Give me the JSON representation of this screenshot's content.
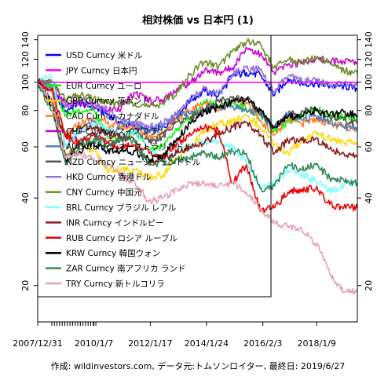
{
  "chart_data": {
    "type": "line",
    "title": "相対株価 vs 日本円 (1)",
    "footer": "作成: wildinvestors.com, データ元:トムソンロイター, 最終日: 2019/6/27",
    "x_tick_labels": [
      "2007/12/31",
      "2010/1/7",
      "2012/1/17",
      "2014/1/24",
      "2016/2/3",
      "2018/1/9"
    ],
    "x_tick_dates": [
      "2007-12-31",
      "2010-01-07",
      "2012-01-17",
      "2014-01-24",
      "2016-02-03",
      "2018-01-09"
    ],
    "x_range": [
      "2007-12-31",
      "2019-06-27"
    ],
    "y_scale": "log",
    "ylim": [
      15,
      145
    ],
    "y_ticks": [
      20,
      40,
      60,
      80,
      100,
      120,
      140
    ],
    "reference_line": 100,
    "legend_position": "top-left",
    "series": [
      {
        "name": "USD Curncy 米ドル",
        "color": "#0000ff",
        "x": [
          "2007-12-31",
          "2008-06-30",
          "2008-12-31",
          "2009-06-30",
          "2010-01-04",
          "2010-06-30",
          "2011-01-03",
          "2011-06-30",
          "2012-01-02",
          "2012-06-29",
          "2012-12-31",
          "2013-06-28",
          "2013-12-31",
          "2014-06-30",
          "2014-12-31",
          "2015-06-30",
          "2015-12-31",
          "2016-06-30",
          "2016-12-30",
          "2017-06-30",
          "2017-12-29",
          "2018-06-29",
          "2018-12-31",
          "2019-06-27"
        ],
        "values": [
          100,
          95,
          80,
          85,
          82,
          78,
          72,
          70,
          68,
          70,
          76,
          87,
          93,
          90,
          105,
          108,
          106,
          90,
          103,
          99,
          99,
          97,
          97,
          95
        ]
      },
      {
        "name": "JPY Curncy 日本円",
        "color": "#ff00ff",
        "x": [
          "2007-12-31",
          "2019-06-27"
        ],
        "values": [
          100,
          100
        ]
      },
      {
        "name": "EUR Curncy ユーロ",
        "color": "#00ff00",
        "x": [
          "2007-12-31",
          "2008-07-15",
          "2008-12-31",
          "2009-06-30",
          "2010-01-04",
          "2010-06-30",
          "2011-01-03",
          "2011-06-30",
          "2012-01-02",
          "2012-06-29",
          "2012-12-31",
          "2013-06-28",
          "2013-12-31",
          "2014-06-30",
          "2014-12-31",
          "2015-06-30",
          "2015-12-31",
          "2016-06-30",
          "2016-12-30",
          "2017-06-30",
          "2017-12-29",
          "2018-06-29",
          "2018-12-31",
          "2019-06-27"
        ],
        "values": [
          100,
          98,
          77,
          80,
          80,
          65,
          64,
          68,
          59,
          60,
          68,
          75,
          86,
          83,
          85,
          81,
          78,
          68,
          73,
          77,
          81,
          77,
          76,
          73
        ]
      },
      {
        "name": "GBP Curncy 英ポンド",
        "color": "#ffd700",
        "x": [
          "2007-12-31",
          "2008-06-30",
          "2008-12-31",
          "2009-06-30",
          "2010-01-04",
          "2010-06-30",
          "2011-01-03",
          "2011-06-30",
          "2012-01-02",
          "2012-06-29",
          "2012-12-31",
          "2013-06-28",
          "2013-12-31",
          "2014-06-30",
          "2014-12-31",
          "2015-06-30",
          "2015-12-31",
          "2016-06-30",
          "2016-12-30",
          "2017-06-30",
          "2017-12-29",
          "2018-06-29",
          "2018-12-31",
          "2019-06-27"
        ],
        "values": [
          100,
          84,
          55,
          62,
          58,
          50,
          50,
          50,
          47,
          48,
          55,
          60,
          68,
          72,
          73,
          77,
          70,
          61,
          57,
          63,
          67,
          64,
          62,
          62
        ]
      },
      {
        "name": "CAD Curncy カナダドル",
        "color": "#ff7f27",
        "x": [
          "2007-12-31",
          "2008-06-30",
          "2008-12-31",
          "2009-06-30",
          "2010-01-04",
          "2010-06-30",
          "2011-01-03",
          "2011-06-30",
          "2012-01-02",
          "2012-06-29",
          "2012-12-31",
          "2013-06-28",
          "2013-12-31",
          "2014-06-30",
          "2014-12-31",
          "2015-06-30",
          "2015-12-31",
          "2016-06-30",
          "2016-12-30",
          "2017-06-30",
          "2017-12-29",
          "2018-06-29",
          "2018-12-31",
          "2019-06-27"
        ],
        "values": [
          100,
          93,
          65,
          72,
          75,
          72,
          70,
          70,
          65,
          67,
          75,
          80,
          85,
          80,
          87,
          85,
          74,
          66,
          74,
          72,
          75,
          72,
          70,
          70
        ]
      },
      {
        "name": "CHF Curncy スイスフラン",
        "color": "#cc00cc",
        "x": [
          "2007-12-31",
          "2008-06-30",
          "2008-12-31",
          "2009-06-30",
          "2010-01-04",
          "2010-06-30",
          "2011-01-03",
          "2011-06-30",
          "2012-01-02",
          "2012-06-29",
          "2012-12-31",
          "2013-06-28",
          "2013-12-31",
          "2014-06-30",
          "2014-12-31",
          "2015-06-30",
          "2015-12-31",
          "2016-06-30",
          "2016-12-30",
          "2017-06-30",
          "2017-12-29",
          "2018-06-29",
          "2018-12-31",
          "2019-06-27"
        ],
        "values": [
          100,
          100,
          84,
          85,
          83,
          80,
          82,
          92,
          87,
          87,
          95,
          100,
          110,
          108,
          112,
          132,
          125,
          108,
          115,
          117,
          120,
          118,
          118,
          117
        ]
      },
      {
        "name": "AUD Curncy オーストラリアドル",
        "color": "#4f81bd",
        "x": [
          "2007-12-31",
          "2008-06-30",
          "2008-12-31",
          "2009-06-30",
          "2010-01-04",
          "2010-06-30",
          "2011-01-03",
          "2011-06-30",
          "2012-01-02",
          "2012-06-29",
          "2012-12-31",
          "2013-06-28",
          "2013-12-31",
          "2014-06-30",
          "2014-12-31",
          "2015-06-30",
          "2015-12-31",
          "2016-06-30",
          "2016-12-30",
          "2017-06-30",
          "2017-12-29",
          "2018-06-29",
          "2018-12-31",
          "2019-06-27"
        ],
        "values": [
          100,
          98,
          60,
          68,
          73,
          66,
          72,
          73,
          67,
          70,
          78,
          78,
          80,
          82,
          83,
          80,
          78,
          70,
          78,
          74,
          77,
          73,
          70,
          70
        ]
      },
      {
        "name": "NZD Curncy ニュージーランドドル",
        "color": "#555555",
        "x": [
          "2007-12-31",
          "2008-06-30",
          "2008-12-31",
          "2009-06-30",
          "2010-01-04",
          "2010-06-30",
          "2011-01-03",
          "2011-06-30",
          "2012-01-02",
          "2012-06-29",
          "2012-12-31",
          "2013-06-28",
          "2013-12-31",
          "2014-06-30",
          "2014-12-31",
          "2015-06-30",
          "2015-12-31",
          "2016-06-30",
          "2016-12-30",
          "2017-06-30",
          "2017-12-29",
          "2018-06-29",
          "2018-12-31",
          "2019-06-27"
        ],
        "values": [
          100,
          88,
          55,
          62,
          66,
          62,
          64,
          68,
          62,
          65,
          73,
          76,
          80,
          87,
          88,
          88,
          79,
          70,
          77,
          80,
          80,
          76,
          74,
          72
        ]
      },
      {
        "name": "HKD Curncy 香港ドル",
        "color": "#9370db",
        "x": [
          "2007-12-31",
          "2008-06-30",
          "2008-12-31",
          "2009-06-30",
          "2010-01-04",
          "2010-06-30",
          "2011-01-03",
          "2011-06-30",
          "2012-01-02",
          "2012-06-29",
          "2012-12-31",
          "2013-06-28",
          "2013-12-31",
          "2014-06-30",
          "2014-12-31",
          "2015-06-30",
          "2015-12-31",
          "2016-06-30",
          "2016-12-30",
          "2017-06-30",
          "2017-12-29",
          "2018-06-29",
          "2018-12-31",
          "2019-06-27"
        ],
        "values": [
          100,
          95,
          82,
          86,
          84,
          80,
          74,
          72,
          70,
          72,
          78,
          88,
          95,
          92,
          107,
          112,
          110,
          93,
          105,
          101,
          101,
          98,
          99,
          97
        ]
      },
      {
        "name": "CNY Curncy 中国元",
        "color": "#6b8e23",
        "x": [
          "2007-12-31",
          "2008-06-30",
          "2008-12-31",
          "2009-06-30",
          "2010-01-04",
          "2010-06-30",
          "2011-01-03",
          "2011-06-30",
          "2012-01-02",
          "2012-06-29",
          "2012-12-31",
          "2013-06-28",
          "2013-12-31",
          "2014-06-30",
          "2014-12-31",
          "2015-06-30",
          "2015-12-31",
          "2016-06-30",
          "2016-12-30",
          "2017-06-30",
          "2017-12-29",
          "2018-06-29",
          "2018-12-31",
          "2019-06-27"
        ],
        "values": [
          100,
          100,
          87,
          90,
          88,
          85,
          85,
          85,
          82,
          85,
          92,
          107,
          118,
          113,
          128,
          138,
          135,
          112,
          120,
          117,
          122,
          117,
          110,
          107
        ]
      },
      {
        "name": "BRL Curncy ブラジル レアル",
        "color": "#7fffff",
        "x": [
          "2007-12-31",
          "2008-06-30",
          "2008-12-31",
          "2009-06-30",
          "2010-01-04",
          "2010-06-30",
          "2011-01-03",
          "2011-06-30",
          "2012-01-02",
          "2012-06-29",
          "2012-12-31",
          "2013-06-28",
          "2013-12-31",
          "2014-06-30",
          "2014-12-31",
          "2015-06-30",
          "2015-12-31",
          "2016-06-30",
          "2016-12-30",
          "2017-06-30",
          "2017-12-29",
          "2018-06-29",
          "2018-12-31",
          "2019-06-27"
        ],
        "values": [
          100,
          105,
          60,
          68,
          72,
          70,
          65,
          68,
          58,
          55,
          58,
          60,
          62,
          63,
          60,
          53,
          43,
          45,
          50,
          48,
          46,
          42,
          44,
          45
        ]
      },
      {
        "name": "INR Curncy インドルピー",
        "color": "#8b1a1a",
        "x": [
          "2007-12-31",
          "2008-06-30",
          "2008-12-31",
          "2009-06-30",
          "2010-01-04",
          "2010-06-30",
          "2011-01-03",
          "2011-06-30",
          "2012-01-02",
          "2012-06-29",
          "2012-12-31",
          "2013-06-28",
          "2013-12-31",
          "2014-06-30",
          "2014-12-31",
          "2015-06-30",
          "2015-12-31",
          "2016-06-30",
          "2016-12-30",
          "2017-06-30",
          "2017-12-29",
          "2018-06-29",
          "2018-12-31",
          "2019-06-27"
        ],
        "values": [
          100,
          85,
          65,
          70,
          70,
          66,
          65,
          63,
          52,
          55,
          57,
          60,
          62,
          67,
          70,
          73,
          66,
          57,
          63,
          63,
          64,
          59,
          57,
          55
        ]
      },
      {
        "name": "RUB Curncy ロシア ルーブル",
        "color": "#ee0000",
        "x": [
          "2007-12-31",
          "2008-06-30",
          "2008-12-31",
          "2009-06-30",
          "2010-01-04",
          "2010-06-30",
          "2011-01-03",
          "2011-06-30",
          "2012-01-02",
          "2012-06-29",
          "2012-12-31",
          "2013-06-28",
          "2013-12-31",
          "2014-06-30",
          "2014-12-31",
          "2015-06-30",
          "2015-12-31",
          "2016-06-30",
          "2016-12-30",
          "2017-06-30",
          "2017-12-29",
          "2018-06-29",
          "2018-12-31",
          "2019-06-27"
        ],
        "values": [
          100,
          95,
          66,
          62,
          66,
          62,
          60,
          61,
          57,
          55,
          62,
          66,
          70,
          68,
          45,
          52,
          36,
          37,
          42,
          43,
          43,
          38,
          37,
          37
        ]
      },
      {
        "name": "KRW Curncy 韓国ウォン",
        "color": "#000000",
        "x": [
          "2007-12-31",
          "2008-06-30",
          "2008-12-31",
          "2009-06-30",
          "2010-01-04",
          "2010-06-30",
          "2011-01-03",
          "2011-06-30",
          "2012-01-02",
          "2012-06-29",
          "2012-12-31",
          "2013-06-28",
          "2013-12-31",
          "2014-06-30",
          "2014-12-31",
          "2015-06-30",
          "2015-12-31",
          "2016-06-30",
          "2016-12-30",
          "2017-06-30",
          "2017-12-29",
          "2018-06-29",
          "2018-12-31",
          "2019-06-27"
        ],
        "values": [
          100,
          84,
          54,
          58,
          62,
          58,
          58,
          58,
          54,
          56,
          64,
          72,
          79,
          82,
          86,
          87,
          80,
          70,
          76,
          77,
          80,
          77,
          79,
          77
        ]
      },
      {
        "name": "ZAR Curncy 南アフリカ ランド",
        "color": "#2e8b57",
        "x": [
          "2007-12-31",
          "2008-06-30",
          "2008-12-31",
          "2009-06-30",
          "2010-01-04",
          "2010-06-30",
          "2011-01-03",
          "2011-06-30",
          "2012-01-02",
          "2012-06-29",
          "2012-12-31",
          "2013-06-28",
          "2013-12-31",
          "2014-06-30",
          "2014-12-31",
          "2015-06-30",
          "2015-12-31",
          "2016-06-30",
          "2016-12-30",
          "2017-06-30",
          "2017-12-29",
          "2018-06-29",
          "2018-12-31",
          "2019-06-27"
        ],
        "values": [
          100,
          80,
          52,
          60,
          64,
          60,
          64,
          62,
          52,
          53,
          54,
          55,
          57,
          55,
          58,
          57,
          43,
          44,
          52,
          50,
          52,
          47,
          46,
          45
        ]
      },
      {
        "name": "TRY Curncy 新トルコリラ",
        "color": "#e8a0b4",
        "x": [
          "2007-12-31",
          "2008-06-30",
          "2008-12-31",
          "2009-06-30",
          "2010-01-04",
          "2010-06-30",
          "2011-01-03",
          "2011-06-30",
          "2012-01-02",
          "2012-06-29",
          "2012-12-31",
          "2013-06-28",
          "2013-12-31",
          "2014-06-30",
          "2014-12-31",
          "2015-06-30",
          "2015-12-31",
          "2016-06-30",
          "2016-12-30",
          "2017-06-30",
          "2017-12-29",
          "2018-06-29",
          "2018-12-31",
          "2019-06-27"
        ],
        "values": [
          100,
          85,
          55,
          57,
          55,
          52,
          48,
          45,
          39,
          40,
          43,
          45,
          45,
          44,
          45,
          42,
          37,
          33,
          32,
          31,
          28,
          22,
          19,
          19
        ]
      }
    ]
  }
}
